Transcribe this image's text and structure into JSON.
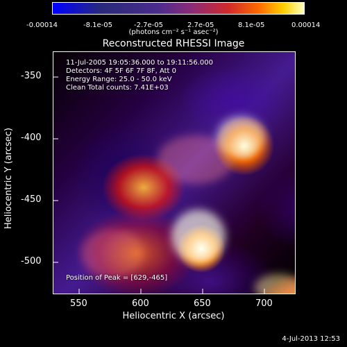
{
  "colorbar": {
    "tick_labels": [
      "-0.00014",
      "-8.1e-05",
      "-2.7e-05",
      "2.7e-05",
      "8.1e-05",
      "0.00014"
    ],
    "units": "(photons cm⁻² s⁻¹ asec⁻²)"
  },
  "title": "Reconstructed RHESSI Image",
  "overlay": {
    "lines": [
      "11-Jul-2005 19:05:36.000 to 19:11:56.000",
      "Detectors: 4F 5F 6F 7F 8F, Att 0",
      "Energy Range: 25.0 - 50.0 keV",
      "Clean     Total counts: 7.41E+03"
    ],
    "peak": "Position of Peak = [629,-465]"
  },
  "axes": {
    "x_label": "Heliocentric X (arcsec)",
    "y_label": "Heliocentric Y (arcsec)",
    "x_ticks": [
      "550",
      "600",
      "650",
      "700"
    ],
    "y_ticks": [
      "-350",
      "-400",
      "-450",
      "-500"
    ]
  },
  "footer": {
    "timestamp": "4-Jul-2013 12:53"
  },
  "colors": {
    "background": "#000000",
    "text": "#ffffff"
  }
}
